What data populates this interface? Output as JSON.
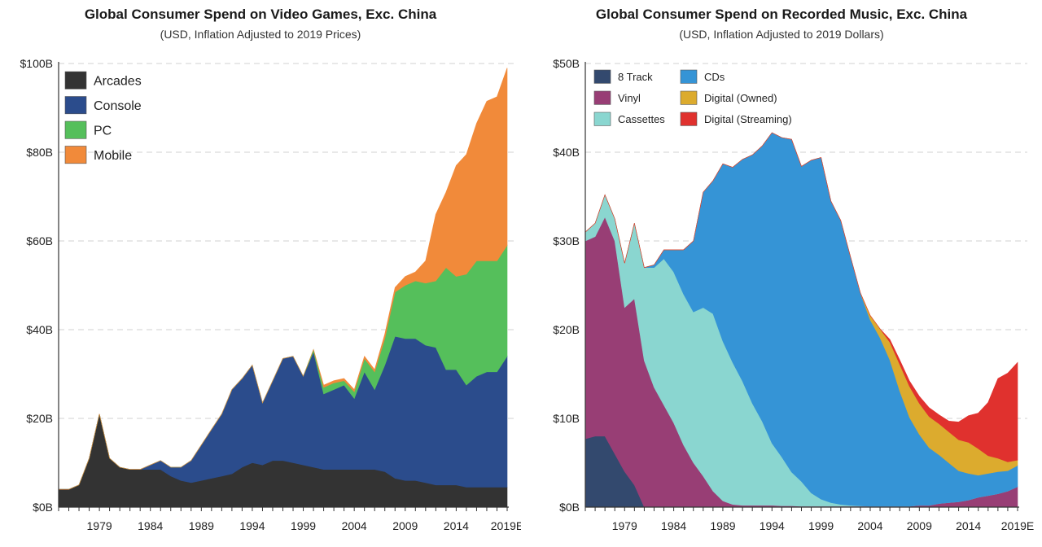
{
  "charts": [
    {
      "title": "Global Consumer Spend on Video Games, Exc. China",
      "subtitle": "(USD, Inflation Adjusted to 2019 Prices)"
    },
    {
      "title": "Global Consumer Spend on Recorded Music, Exc. China",
      "subtitle": "(USD, Inflation Adjusted to 2019 Dollars)"
    }
  ],
  "chart_data": [
    {
      "type": "area",
      "stacked": true,
      "title": "Global Consumer Spend on Video Games, Exc. China",
      "subtitle": "(USD, Inflation Adjusted to 2019 Prices)",
      "xlabel": "",
      "ylabel": "",
      "x_start": 1975,
      "x_end": 2019,
      "xticks": [
        "1979",
        "1984",
        "1989",
        "1994",
        "1999",
        "2004",
        "2009",
        "2014",
        "2019E"
      ],
      "ylim": [
        0,
        100
      ],
      "yticks": [
        "$0B",
        "$20B",
        "$40B",
        "$60B",
        "$80B",
        "$100B"
      ],
      "grid": "horizontal dashed",
      "legend_position": "top-left",
      "series": [
        {
          "name": "Arcades",
          "color": "#333333",
          "values": [
            4,
            4,
            5,
            11,
            21,
            11,
            9,
            8.5,
            8.5,
            8.5,
            8.5,
            7,
            6,
            5.5,
            6,
            6.5,
            7,
            7.5,
            9,
            10,
            9.5,
            10.5,
            10.5,
            10,
            9.5,
            9,
            8.5,
            8.5,
            8.5,
            8.5,
            8.5,
            8.5,
            8,
            6.5,
            6,
            6,
            5.5,
            5,
            5,
            5,
            4.5,
            4.5,
            4.5,
            4.5,
            4.5
          ]
        },
        {
          "name": "Console",
          "color": "#2b4c8c",
          "values": [
            0,
            0,
            0,
            0,
            0,
            0,
            0,
            0,
            0,
            1,
            2,
            2,
            3,
            5,
            8,
            11,
            14,
            19,
            20,
            22,
            14,
            18,
            23,
            24,
            20,
            26,
            17,
            18,
            19,
            16,
            22,
            18,
            24,
            32,
            32,
            32,
            31,
            31,
            26,
            26,
            23,
            25,
            26,
            26,
            29.5
          ]
        },
        {
          "name": "PC",
          "color": "#55bf5b",
          "values": [
            0,
            0,
            0,
            0,
            0,
            0,
            0,
            0,
            0,
            0,
            0,
            0,
            0,
            0,
            0,
            0,
            0,
            0,
            0,
            0,
            0,
            0,
            0,
            0,
            0,
            0.5,
            1.5,
            1.5,
            1,
            1.5,
            3,
            4,
            6,
            10,
            12,
            13,
            14,
            15,
            23,
            21,
            25,
            26,
            25,
            25,
            25
          ]
        },
        {
          "name": "Mobile",
          "color": "#f18a3a",
          "values": [
            0,
            0,
            0,
            0,
            0,
            0,
            0,
            0,
            0,
            0,
            0,
            0,
            0,
            0,
            0,
            0,
            0,
            0,
            0,
            0,
            0,
            0,
            0,
            0,
            0,
            0,
            0.5,
            0.5,
            0.5,
            0.5,
            0.5,
            0.5,
            1,
            1,
            2,
            2,
            5,
            15,
            17,
            25,
            27,
            31,
            36,
            37,
            40
          ]
        }
      ]
    },
    {
      "type": "area",
      "stacked": true,
      "title": "Global Consumer Spend on Recorded Music, Exc. China",
      "subtitle": "(USD, Inflation Adjusted to 2019 Dollars)",
      "xlabel": "",
      "ylabel": "",
      "x_start": 1975,
      "x_end": 2019,
      "xticks": [
        "1979",
        "1984",
        "1989",
        "1994",
        "1999",
        "2004",
        "2009",
        "2014",
        "2019E"
      ],
      "ylim": [
        0,
        50
      ],
      "yticks": [
        "$0B",
        "$10B",
        "$20B",
        "$30B",
        "$40B",
        "$50B"
      ],
      "grid": "horizontal dashed",
      "legend_position": "top-left, two columns",
      "series": [
        {
          "name": "8 Track",
          "color": "#33496e",
          "values": [
            7.7,
            8,
            8,
            6,
            4,
            2.5,
            0,
            0,
            0,
            0,
            0,
            0,
            0,
            0,
            0,
            0,
            0,
            0,
            0,
            0,
            0,
            0,
            0,
            0,
            0,
            0,
            0,
            0,
            0,
            0,
            0,
            0,
            0,
            0,
            0,
            0,
            0,
            0,
            0,
            0,
            0,
            0,
            0,
            0,
            0
          ]
        },
        {
          "name": "Vinyl",
          "color": "#983e75",
          "values": [
            22.3,
            22.5,
            24.7,
            24,
            18.5,
            21,
            16.5,
            13.5,
            11.5,
            9.5,
            7,
            5,
            3.5,
            1.8,
            0.7,
            0.3,
            0.2,
            0.2,
            0.2,
            0.2,
            0.15,
            0.15,
            0.1,
            0.1,
            0.1,
            0.1,
            0.1,
            0.1,
            0.1,
            0.1,
            0.1,
            0.1,
            0.1,
            0.1,
            0.2,
            0.2,
            0.4,
            0.5,
            0.6,
            0.8,
            1.1,
            1.3,
            1.5,
            1.8,
            2.3
          ]
        },
        {
          "name": "Cassettes",
          "color": "#8ad6d0",
          "values": [
            1,
            1.5,
            2.5,
            2.5,
            5,
            8.5,
            10.5,
            13.5,
            16.5,
            17,
            17,
            17,
            19,
            20,
            18,
            16,
            14,
            11.5,
            9.5,
            7,
            5.5,
            3.8,
            2.8,
            1.5,
            0.8,
            0.4,
            0.2,
            0.1,
            0.05,
            0,
            0,
            0,
            0,
            0,
            0,
            0,
            0,
            0,
            0,
            0,
            0,
            0,
            0,
            0,
            0
          ]
        },
        {
          "name": "CDs",
          "color": "#3594d6",
          "values": [
            0,
            0,
            0,
            0,
            0,
            0,
            0,
            0.3,
            1,
            2.5,
            5,
            8,
            13,
            15,
            20,
            22,
            25,
            28,
            31,
            35,
            36,
            37.5,
            35.5,
            37.5,
            38.5,
            34,
            32,
            28,
            24,
            21,
            19,
            16.5,
            13,
            10,
            8,
            6.5,
            5.5,
            4.5,
            3.5,
            3,
            2.5,
            2.5,
            2.5,
            2.3,
            2.4
          ]
        },
        {
          "name": "Digital (Owned)",
          "color": "#dcab2e",
          "values": [
            0,
            0,
            0,
            0,
            0,
            0,
            0,
            0,
            0,
            0,
            0,
            0,
            0,
            0,
            0,
            0,
            0,
            0,
            0,
            0,
            0,
            0,
            0,
            0,
            0,
            0,
            0,
            0,
            0,
            0.5,
            1,
            2,
            3,
            3.5,
            3.5,
            3.5,
            3.5,
            3.5,
            3.5,
            3.5,
            3,
            2,
            1.5,
            1,
            0.6
          ]
        },
        {
          "name": "Digital (Streaming)",
          "color": "#e0312e",
          "values": [
            0,
            0,
            0,
            0,
            0,
            0,
            0,
            0,
            0,
            0,
            0,
            0,
            0,
            0,
            0,
            0,
            0,
            0,
            0,
            0,
            0,
            0,
            0,
            0,
            0,
            0,
            0,
            0,
            0,
            0,
            0,
            0.3,
            0.5,
            0.6,
            0.8,
            1,
            1,
            1.2,
            2,
            3,
            4,
            6,
            9,
            10,
            11
          ]
        }
      ]
    }
  ]
}
